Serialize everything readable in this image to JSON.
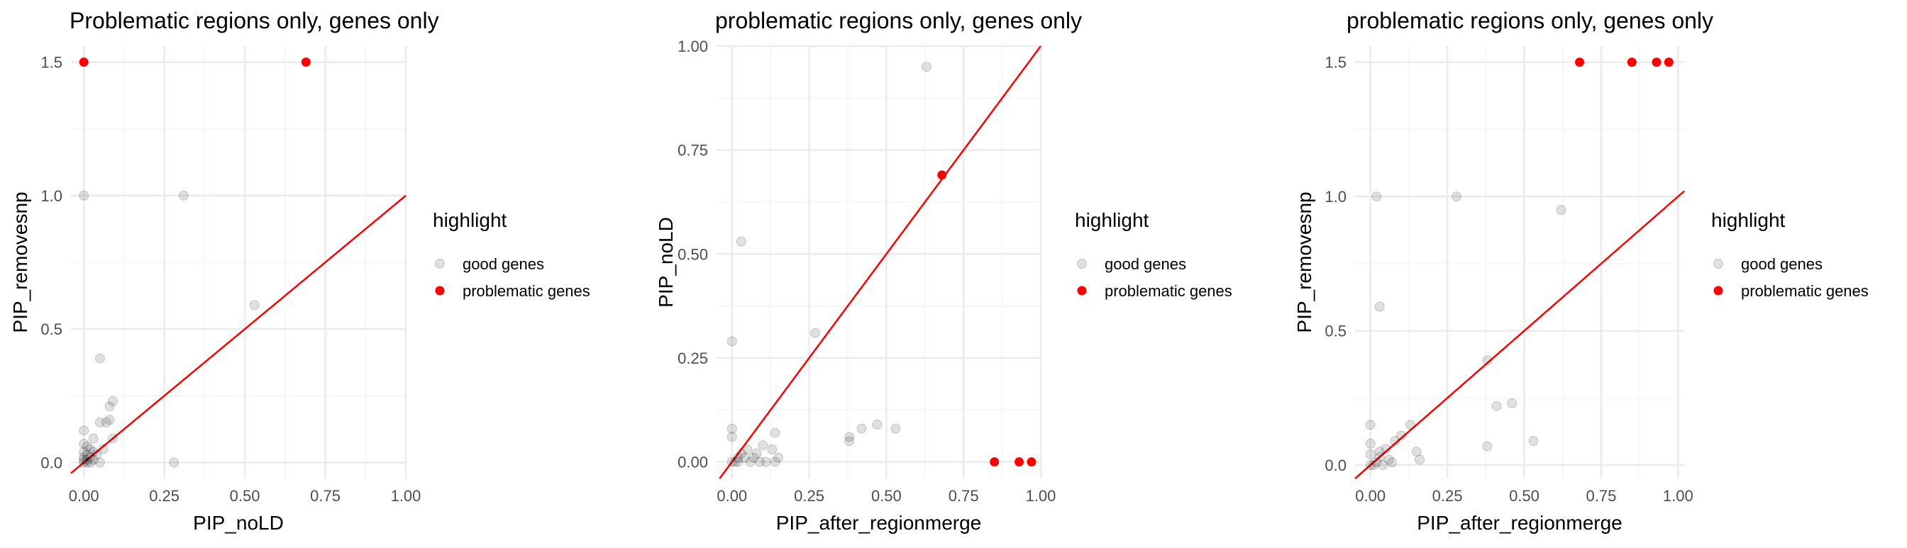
{
  "chart_data": [
    {
      "type": "scatter",
      "title": "Problematic regions only, genes only",
      "xlabel": "PIP_noLD",
      "ylabel": "PIP_removesnp",
      "xlim": [
        -0.04,
        1.0
      ],
      "ylim": [
        -0.06,
        1.56
      ],
      "xticks": [
        "0.00",
        "0.25",
        "0.50",
        "0.75",
        "1.00"
      ],
      "yticks": [
        "0.0",
        "0.5",
        "1.0",
        "1.5"
      ],
      "xtick_values": [
        0,
        0.25,
        0.5,
        0.75,
        1.0
      ],
      "ytick_values": [
        0,
        0.5,
        1.0,
        1.5
      ],
      "legend": {
        "title": "highlight",
        "entries": [
          "good genes",
          "problematic genes"
        ]
      },
      "reference_line": "y = x",
      "series": [
        {
          "name": "good genes",
          "points": [
            [
              0.0,
              1.0
            ],
            [
              0.31,
              1.0
            ],
            [
              0.53,
              0.59
            ],
            [
              0.05,
              0.39
            ],
            [
              0.09,
              0.23
            ],
            [
              0.08,
              0.21
            ],
            [
              0.08,
              0.16
            ],
            [
              0.07,
              0.15
            ],
            [
              0.05,
              0.15
            ],
            [
              0.0,
              0.12
            ],
            [
              0.03,
              0.09
            ],
            [
              0.09,
              0.09
            ],
            [
              0.0,
              0.07
            ],
            [
              0.01,
              0.06
            ],
            [
              0.02,
              0.05
            ],
            [
              0.03,
              0.04
            ],
            [
              0.0,
              0.04
            ],
            [
              0.01,
              0.03
            ],
            [
              0.02,
              0.02
            ],
            [
              0.0,
              0.02
            ],
            [
              0.01,
              0.01
            ],
            [
              0.0,
              0.01
            ],
            [
              0.03,
              0.01
            ],
            [
              0.05,
              0.0
            ],
            [
              0.28,
              0.0
            ],
            [
              0.0,
              0.0
            ],
            [
              0.01,
              0.0
            ],
            [
              0.02,
              0.0
            ],
            [
              0.04,
              0.03
            ],
            [
              0.06,
              0.05
            ]
          ]
        },
        {
          "name": "problematic genes",
          "points": [
            [
              0.0,
              1.5
            ],
            [
              0.69,
              1.5
            ]
          ]
        }
      ]
    },
    {
      "type": "scatter",
      "title": "problematic regions only, genes only",
      "xlabel": "PIP_after_regionmerge",
      "ylabel": "PIP_noLD",
      "xlim": [
        -0.05,
        1.0
      ],
      "ylim": [
        -0.04,
        1.0
      ],
      "xticks": [
        "0.00",
        "0.25",
        "0.50",
        "0.75",
        "1.00"
      ],
      "yticks": [
        "0.00",
        "0.25",
        "0.50",
        "0.75",
        "1.00"
      ],
      "xtick_values": [
        0,
        0.25,
        0.5,
        0.75,
        1.0
      ],
      "ytick_values": [
        0,
        0.25,
        0.5,
        0.75,
        1.0
      ],
      "legend": {
        "title": "highlight",
        "entries": [
          "good genes",
          "problematic genes"
        ]
      },
      "reference_line": "y = x",
      "series": [
        {
          "name": "good genes",
          "points": [
            [
              0.63,
              0.95
            ],
            [
              0.03,
              0.53
            ],
            [
              0.27,
              0.31
            ],
            [
              0.0,
              0.29
            ],
            [
              0.0,
              0.08
            ],
            [
              0.14,
              0.07
            ],
            [
              0.0,
              0.06
            ],
            [
              0.38,
              0.06
            ],
            [
              0.42,
              0.08
            ],
            [
              0.47,
              0.09
            ],
            [
              0.53,
              0.08
            ],
            [
              0.38,
              0.05
            ],
            [
              0.1,
              0.04
            ],
            [
              0.13,
              0.03
            ],
            [
              0.05,
              0.03
            ],
            [
              0.08,
              0.02
            ],
            [
              0.15,
              0.01
            ],
            [
              0.02,
              0.01
            ],
            [
              0.04,
              0.01
            ],
            [
              0.06,
              0.0
            ],
            [
              0.09,
              0.0
            ],
            [
              0.11,
              0.0
            ],
            [
              0.14,
              0.0
            ],
            [
              0.01,
              0.0
            ],
            [
              0.0,
              0.0
            ],
            [
              0.02,
              0.0
            ],
            [
              0.03,
              0.02
            ],
            [
              0.07,
              0.01
            ]
          ]
        },
        {
          "name": "problematic genes",
          "points": [
            [
              0.68,
              0.69
            ],
            [
              0.85,
              0.0
            ],
            [
              0.93,
              0.0
            ],
            [
              0.97,
              0.0
            ]
          ]
        }
      ]
    },
    {
      "type": "scatter",
      "title": "problematic regions only, genes only",
      "xlabel": "PIP_after_regionmerge",
      "ylabel": "PIP_removesnp",
      "xlim": [
        -0.05,
        1.02
      ],
      "ylim": [
        -0.05,
        1.56
      ],
      "xticks": [
        "0.00",
        "0.25",
        "0.50",
        "0.75",
        "1.00"
      ],
      "yticks": [
        "0.0",
        "0.5",
        "1.0",
        "1.5"
      ],
      "xtick_values": [
        0,
        0.25,
        0.5,
        0.75,
        1.0
      ],
      "ytick_values": [
        0,
        0.5,
        1.0,
        1.5
      ],
      "legend": {
        "title": "highlight",
        "entries": [
          "good genes",
          "problematic genes"
        ]
      },
      "reference_line": "y = x",
      "series": [
        {
          "name": "good genes",
          "points": [
            [
              0.02,
              1.0
            ],
            [
              0.28,
              1.0
            ],
            [
              0.62,
              0.95
            ],
            [
              0.03,
              0.59
            ],
            [
              0.38,
              0.39
            ],
            [
              0.46,
              0.23
            ],
            [
              0.41,
              0.22
            ],
            [
              0.13,
              0.15
            ],
            [
              0.1,
              0.11
            ],
            [
              0.08,
              0.09
            ],
            [
              0.0,
              0.15
            ],
            [
              0.05,
              0.06
            ],
            [
              0.15,
              0.05
            ],
            [
              0.38,
              0.07
            ],
            [
              0.53,
              0.09
            ],
            [
              0.16,
              0.02
            ],
            [
              0.03,
              0.03
            ],
            [
              0.06,
              0.02
            ],
            [
              0.0,
              0.04
            ],
            [
              0.02,
              0.01
            ],
            [
              0.0,
              0.0
            ],
            [
              0.01,
              0.0
            ],
            [
              0.04,
              0.0
            ],
            [
              0.07,
              0.01
            ],
            [
              0.0,
              0.08
            ],
            [
              0.03,
              0.05
            ]
          ]
        },
        {
          "name": "problematic genes",
          "points": [
            [
              0.68,
              1.5
            ],
            [
              0.85,
              1.5
            ],
            [
              0.93,
              1.5
            ],
            [
              0.97,
              1.5
            ]
          ]
        }
      ]
    }
  ],
  "colors": {
    "good": "#000000",
    "problematic": "#ff0000",
    "reference_line": "#ff0000",
    "grid_major": "#ebebeb",
    "grid_minor": "#f5f5f5",
    "tick_text": "#4d4d4d"
  }
}
